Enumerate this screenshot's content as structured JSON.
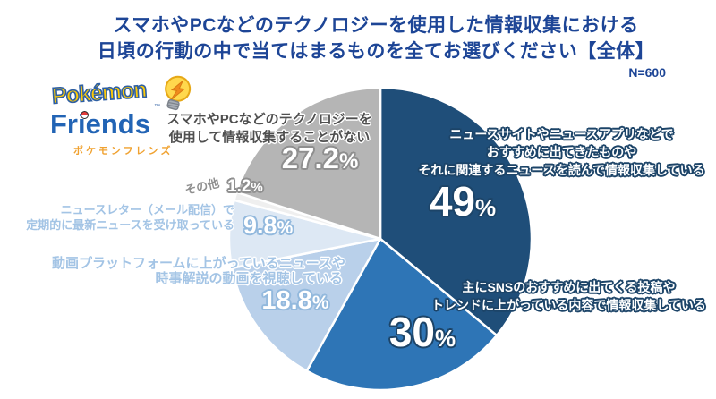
{
  "title": {
    "line1": "スマホやPCなどのテクノロジーを使用した情報収集における",
    "line2": "日頃の行動の中で当てはまるものを全てお選びください【全体】",
    "n_label": "N=600"
  },
  "logo": {
    "pokemon": "Pokémon",
    "tm": "™",
    "friends": "Friends",
    "katakana": "ポケモンフレンズ"
  },
  "colors": {
    "title_text": "#1d4596",
    "slice_dark_navy": "#1F4E79",
    "slice_medium_blue": "#2E75B6",
    "slice_light_blue": "#B9D0EA",
    "slice_pale_blue": "#DDE8F4",
    "slice_white": "#EFEFEF",
    "slice_gray": "#B5B5B5",
    "background": "#FFFFFF"
  },
  "chart_data": {
    "type": "pie",
    "title": "スマホやPCなどのテクノロジーを使用した情報収集における日頃の行動の中で当てはまるものを全てお選びください【全体】",
    "sample_size_label": "N=600",
    "unit": "%",
    "start_angle_deg": 0,
    "direction": "clockwise",
    "legend_position": "none",
    "slices": [
      {
        "label": "ニュースサイトやニュースアプリなどでおすすめに出てきたものやそれに関連するニュースを読んで情報収集している",
        "value": 49,
        "display": "49%",
        "color": "#1F4E79"
      },
      {
        "label": "主にSNSのおすすめに出てくる投稿やトレンドに上がっている内容で情報収集している",
        "value": 30,
        "display": "30%",
        "color": "#2E75B6"
      },
      {
        "label": "動画プラットフォームに上がっているニュースや時事解説の動画を視聴している",
        "value": 18.8,
        "display": "18.8%",
        "color": "#B9D0EA"
      },
      {
        "label": "ニュースレター（メール配信）で定期的に最新ニュースを受け取っている",
        "value": 9.8,
        "display": "9.8%",
        "color": "#DDE8F4"
      },
      {
        "label": "その他",
        "value": 1.2,
        "display": "1.2%",
        "color": "#EFEFEF"
      },
      {
        "label": "スマホやPCなどのテクノロジーを使用して情報収集することがない",
        "value": 27.2,
        "display": "27.2%",
        "color": "#B5B5B5"
      }
    ]
  },
  "labels": {
    "l49": {
      "lines": [
        "ニュースサイトやニュースアプリなどで",
        "おすすめに出てきたものや",
        "それに関連するニュースを読んで情報収集している"
      ],
      "num": "49",
      "pct": "%"
    },
    "l30": {
      "lines": [
        "主にSNSのおすすめに出てくる投稿や",
        "トレンドに上がっている内容で情報収集している"
      ],
      "num": "30",
      "pct": "%"
    },
    "l188": {
      "lines": [
        "動画プラットフォームに上がっているニュースや",
        "時事解説の動画を視聴している"
      ],
      "num": "18.8",
      "pct": "%"
    },
    "l98": {
      "lines": [
        "ニュースレター（メール配信）で",
        "定期的に最新ニュースを受け取っている"
      ],
      "num": "9.8",
      "pct": "%"
    },
    "l12": {
      "label": "その他",
      "num": "1.2",
      "pct": "%"
    },
    "l272": {
      "lines": [
        "スマホやPCなどのテクノロジーを",
        "使用して情報収集することがない"
      ],
      "num": "27.2",
      "pct": "%"
    }
  }
}
